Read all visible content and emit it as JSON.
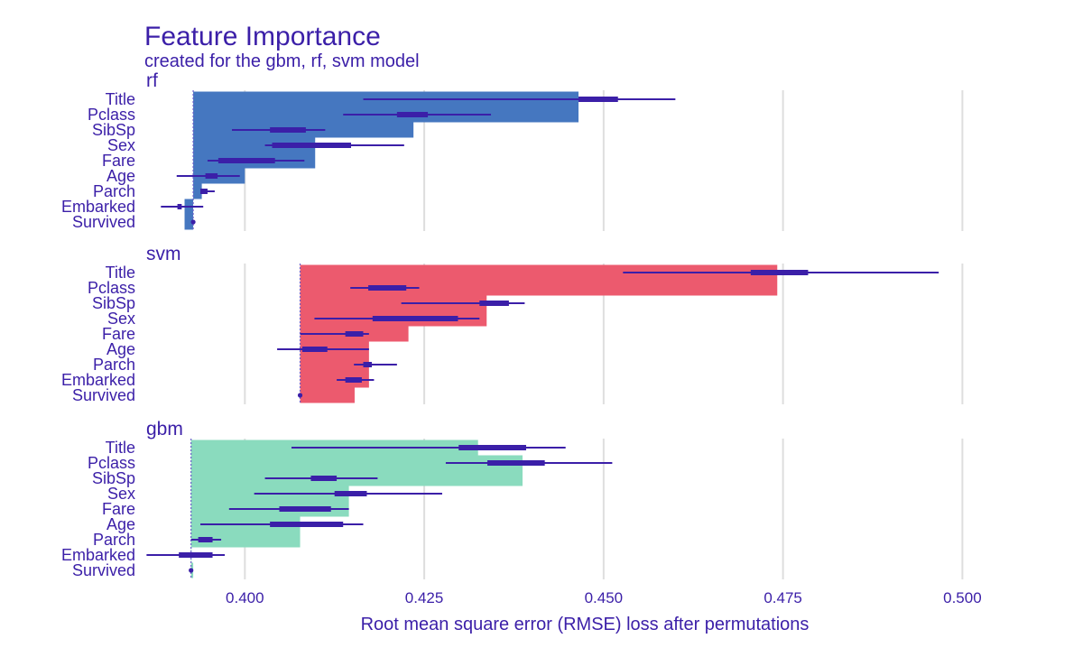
{
  "chart_data": {
    "type": "bar",
    "title": "Feature Importance",
    "subtitle": "created for the gbm, rf, svm model",
    "xlabel": "Root mean square error (RMSE) loss after permutations",
    "xlim": [
      0.386,
      0.508
    ],
    "xticks": [
      0.4,
      0.425,
      0.45,
      0.475,
      0.5
    ],
    "xtick_labels": [
      "0.400",
      "0.425",
      "0.450",
      "0.475",
      "0.500"
    ],
    "grid": true,
    "features": [
      "Title",
      "Pclass",
      "SibSp",
      "Sex",
      "Fare",
      "Age",
      "Parch",
      "Embarked",
      "Survived"
    ],
    "facets": [
      {
        "name": "rf",
        "color": "#4577c0",
        "baseline": 0.3928,
        "values": [
          0.4465,
          0.4465,
          0.4235,
          0.4098,
          0.4098,
          0.4,
          0.394,
          0.3916,
          0.3916
        ],
        "min": [
          0.4165,
          0.4137,
          0.3982,
          0.4028,
          0.3948,
          0.3905,
          0.3938,
          0.3883,
          0.3928
        ],
        "q1": [
          0.4465,
          0.4212,
          0.4035,
          0.4038,
          0.3963,
          0.3945,
          0.3938,
          0.3906,
          0.3928
        ],
        "q3": [
          0.452,
          0.4255,
          0.4085,
          0.4148,
          0.4042,
          0.3962,
          0.3948,
          0.3912,
          0.3928
        ],
        "max": [
          0.46,
          0.4343,
          0.4112,
          0.4222,
          0.4083,
          0.3993,
          0.3958,
          0.3942,
          0.3928
        ]
      },
      {
        "name": "svm",
        "color": "#ec5a6e",
        "baseline": 0.4077,
        "values": [
          0.4742,
          0.4742,
          0.4337,
          0.4337,
          0.4228,
          0.4173,
          0.4173,
          0.4173,
          0.4153
        ],
        "min": [
          0.4527,
          0.4147,
          0.4218,
          0.4097,
          0.4077,
          0.4045,
          0.4152,
          0.4128,
          0.4077
        ],
        "q1": [
          0.4705,
          0.4172,
          0.4327,
          0.4178,
          0.414,
          0.408,
          0.4165,
          0.414,
          0.4077
        ],
        "q3": [
          0.4785,
          0.4225,
          0.4368,
          0.4297,
          0.4165,
          0.4115,
          0.4177,
          0.4163,
          0.4077
        ],
        "max": [
          0.4967,
          0.4243,
          0.439,
          0.4327,
          0.4173,
          0.4173,
          0.4212,
          0.418,
          0.4077
        ]
      },
      {
        "name": "gbm",
        "color": "#8adbbe",
        "baseline": 0.3925,
        "values": [
          0.4325,
          0.4387,
          0.4387,
          0.4145,
          0.4145,
          0.4077,
          0.4077,
          0.3925,
          0.3928
        ],
        "min": [
          0.4065,
          0.428,
          0.4028,
          0.4013,
          0.3978,
          0.3938,
          0.3925,
          0.3863,
          0.3925
        ],
        "q1": [
          0.4298,
          0.4338,
          0.4092,
          0.4125,
          0.4048,
          0.4035,
          0.3935,
          0.3908,
          0.3925
        ],
        "q3": [
          0.4392,
          0.4418,
          0.4128,
          0.417,
          0.412,
          0.4137,
          0.3955,
          0.3955,
          0.3925
        ],
        "max": [
          0.4447,
          0.4512,
          0.4185,
          0.4275,
          0.4145,
          0.4165,
          0.3967,
          0.3972,
          0.3925
        ]
      }
    ]
  }
}
